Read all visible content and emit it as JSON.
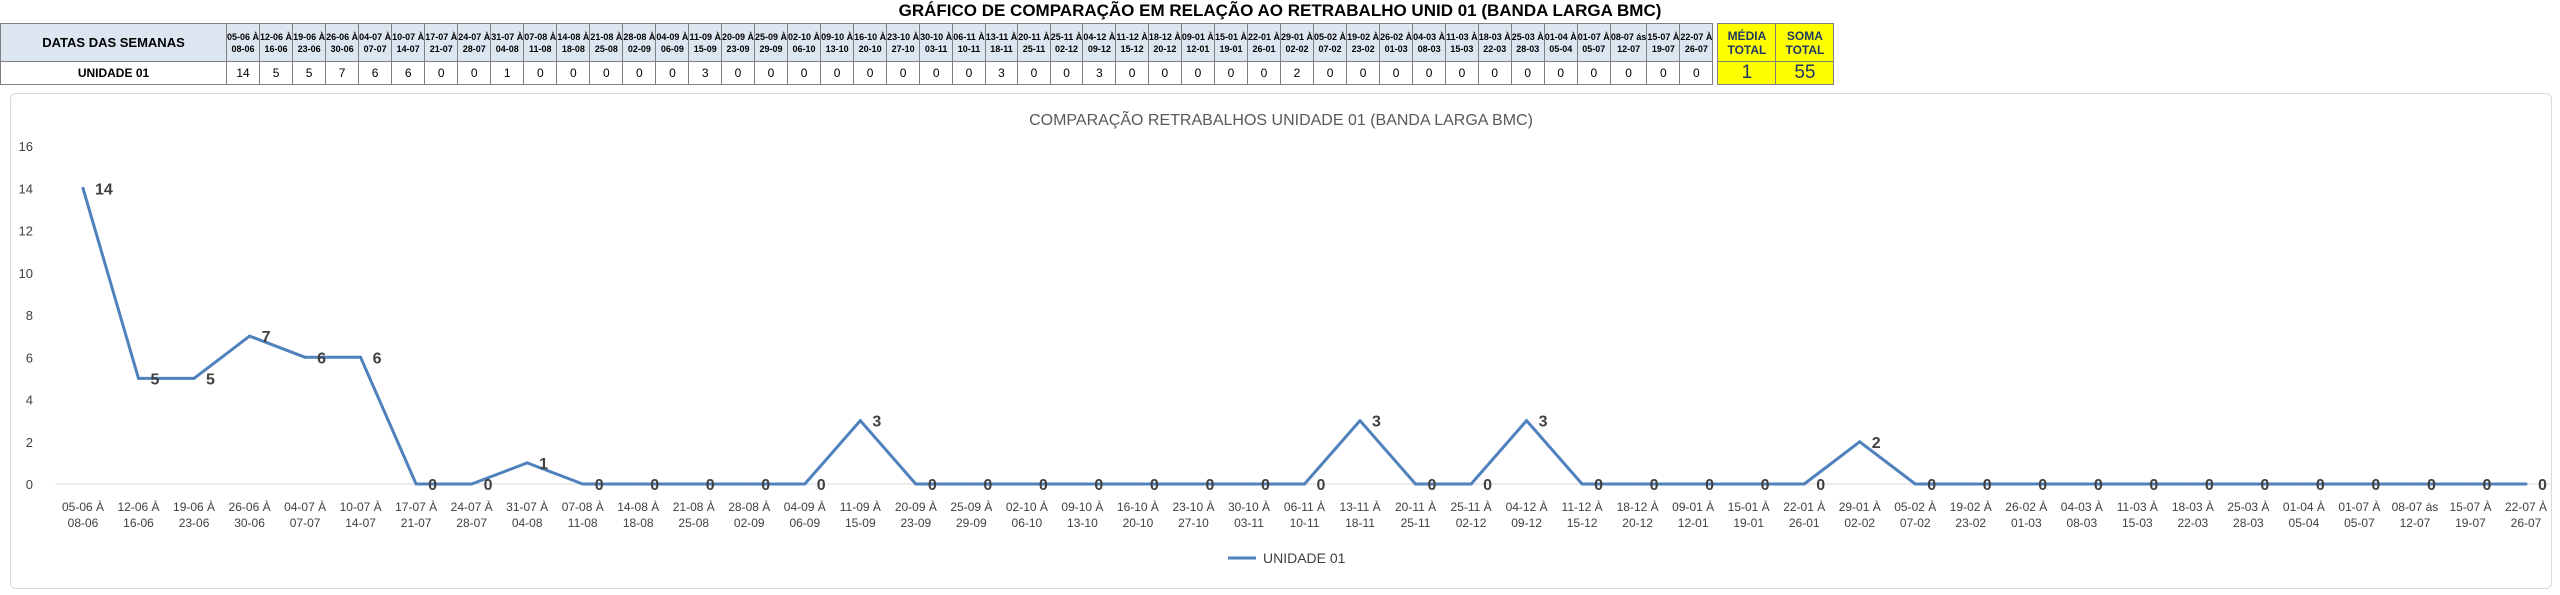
{
  "header": {
    "title": "GRÁFICO DE COMPARAÇÃO EM RELAÇÃO AO RETRABALHO UNID 01 (BANDA LARGA BMC)",
    "row_label": "DATAS DAS SEMANAS",
    "unit_label": "UNIDADE 01",
    "avg_label_1": "MÉDIA",
    "avg_label_2": "TOTAL",
    "avg_value": "1",
    "sum_label_1": "SOMA",
    "sum_label_2": "TOTAL",
    "sum_value": "55"
  },
  "weeks_top": [
    "05-06 À",
    "12-06 À",
    "19-06 À",
    "26-06 À",
    "04-07 À",
    "10-07 À",
    "17-07 À",
    "24-07 À",
    "31-07 À",
    "07-08 À",
    "14-08 À",
    "21-08 À",
    "28-08 À",
    "04-09 À",
    "11-09 À",
    "20-09 À",
    "25-09 À",
    "02-10 À",
    "09-10 À",
    "16-10 À",
    "23-10 À",
    "30-10 À",
    "06-11 À",
    "13-11 À",
    "20-11 À",
    "25-11 À",
    "04-12 À",
    "11-12 À",
    "18-12 À",
    "09-01 À",
    "15-01 À",
    "22-01 À",
    "29-01 À",
    "05-02 À",
    "19-02 À",
    "26-02 À",
    "04-03 À",
    "11-03 À",
    "18-03 À",
    "25-03 À",
    "01-04 À",
    "01-07 À",
    "08-07 ás",
    "15-07 À",
    "22-07 À"
  ],
  "weeks_bottom": [
    "08-06",
    "16-06",
    "23-06",
    "30-06",
    "07-07",
    "14-07",
    "21-07",
    "28-07",
    "04-08",
    "11-08",
    "18-08",
    "25-08",
    "02-09",
    "06-09",
    "15-09",
    "23-09",
    "29-09",
    "06-10",
    "13-10",
    "20-10",
    "27-10",
    "03-11",
    "10-11",
    "18-11",
    "25-11",
    "02-12",
    "09-12",
    "15-12",
    "20-12",
    "12-01",
    "19-01",
    "26-01",
    "02-02",
    "07-02",
    "23-02",
    "01-03",
    "08-03",
    "15-03",
    "22-03",
    "28-03",
    "05-04",
    "05-07",
    "12-07",
    "19-07",
    "26-07"
  ],
  "chart_data": {
    "type": "line",
    "title": "COMPARAÇÃO RETRABALHOS UNIDADE 01 (BANDA LARGA BMC)",
    "categories": [
      "05-06 À 08-06",
      "12-06 À 16-06",
      "19-06 À 23-06",
      "26-06 À 30-06",
      "04-07 À 07-07",
      "10-07 À 14-07",
      "17-07 À 21-07",
      "24-07 À 28-07",
      "31-07 À 04-08",
      "07-08 À 11-08",
      "14-08 À 18-08",
      "21-08 À 25-08",
      "28-08 À 02-09",
      "04-09 À 06-09",
      "11-09 À 15-09",
      "20-09 À 23-09",
      "25-09 À 29-09",
      "02-10 À 06-10",
      "09-10 À 13-10",
      "16-10 À 20-10",
      "23-10 À 27-10",
      "30-10 À 03-11",
      "06-11 À 10-11",
      "13-11 À 18-11",
      "20-11 À 25-11",
      "25-11 À 02-12",
      "04-12 À 09-12",
      "11-12 À 15-12",
      "18-12 À 20-12",
      "09-01 À 12-01",
      "15-01 À 19-01",
      "22-01 À 26-01",
      "29-01 À 02-02",
      "05-02 À 07-02",
      "19-02 À 23-02",
      "26-02 À 01-03",
      "04-03 À 08-03",
      "11-03 À 15-03",
      "18-03 À 22-03",
      "25-03 À 28-03",
      "01-04 À 05-04",
      "01-07 À 05-07",
      "08-07 ás 12-07",
      "15-07 À 19-07",
      "22-07 À 26-07"
    ],
    "series": [
      {
        "name": "UNIDADE 01",
        "color": "#4f81bd",
        "values": [
          14,
          5,
          5,
          7,
          6,
          6,
          0,
          0,
          1,
          0,
          0,
          0,
          0,
          0,
          3,
          0,
          0,
          0,
          0,
          0,
          0,
          0,
          0,
          3,
          0,
          0,
          3,
          0,
          0,
          0,
          0,
          0,
          2,
          0,
          0,
          0,
          0,
          0,
          0,
          0,
          0,
          0,
          0,
          0,
          0
        ]
      }
    ],
    "ylim": [
      0,
      16
    ],
    "yticks": [
      0,
      2,
      4,
      6,
      8,
      10,
      12,
      14,
      16
    ],
    "grid": false,
    "legend": "bottom-center"
  }
}
